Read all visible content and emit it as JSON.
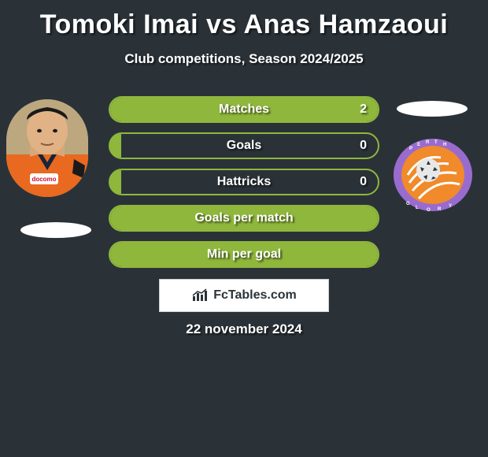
{
  "title": "Tomoki Imai vs Anas Hamzaoui",
  "subtitle": "Club competitions, Season 2024/2025",
  "date": "22 november 2024",
  "brand": "FcTables.com",
  "colors": {
    "background": "#2a3238",
    "accent": "#8fb73c",
    "text": "#ffffff",
    "brand_box_bg": "#ffffff",
    "brand_box_border": "#d0d0d0"
  },
  "bars": [
    {
      "label": "Matches",
      "value": "2",
      "show_value": true,
      "fill_pct": 100
    },
    {
      "label": "Goals",
      "value": "0",
      "show_value": true,
      "fill_pct": 4
    },
    {
      "label": "Hattricks",
      "value": "0",
      "show_value": true,
      "fill_pct": 4
    },
    {
      "label": "Goals per match",
      "value": "",
      "show_value": false,
      "fill_pct": 100
    },
    {
      "label": "Min per goal",
      "value": "",
      "show_value": false,
      "fill_pct": 100
    }
  ],
  "club_badge_colors": {
    "ring": "#9a6bcf",
    "inner": "#f08a2a",
    "swirls": "#ffffff",
    "ball": "#e8e8e8"
  },
  "player_photo_desc": "player-headshot-orange-jersey"
}
